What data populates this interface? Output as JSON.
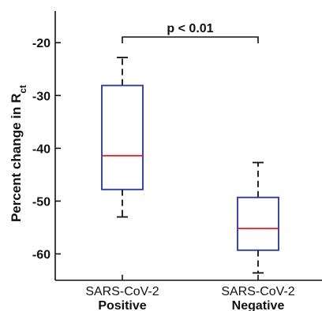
{
  "chart_data": {
    "type": "box",
    "ylabel": "Percent change in R",
    "ylabel_sub": "ct",
    "ylim": [
      -65,
      -14
    ],
    "yticks": [
      -20,
      -30,
      -40,
      -50,
      -60
    ],
    "categories": [
      {
        "line1": "SARS-CoV-2",
        "line2": "Positive"
      },
      {
        "line1": "SARS-CoV-2",
        "line2": "Negative"
      }
    ],
    "boxes": [
      {
        "whisker_low": -53,
        "q1": -47.8,
        "median": -41.4,
        "q3": -28.1,
        "whisker_high": -22.8
      },
      {
        "whisker_low": -63.6,
        "q1": -59.3,
        "median": -55.2,
        "q3": -49.3,
        "whisker_high": -42.7
      }
    ],
    "annotation": "p < 0.01",
    "colors": {
      "box": "#2233aa",
      "median": "#e8141b",
      "whisker": "#111111",
      "axis": "#111111"
    }
  }
}
